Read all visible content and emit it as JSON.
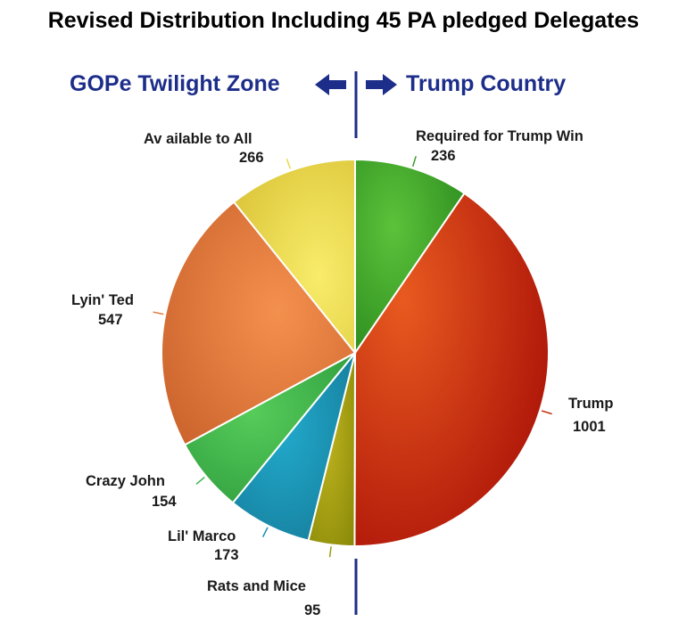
{
  "title": "Revised Distribution Including 45 PA pledged Delegates",
  "zones": {
    "left": "GOPe Twilight Zone",
    "right": "Trump Country",
    "color": "#1c2d8a"
  },
  "chart_data": {
    "type": "pie",
    "title": "Revised Distribution Including 45 PA pledged Delegates",
    "slices": [
      {
        "label": "Required for Trump Win",
        "value": 236,
        "color": "#3a9a2a"
      },
      {
        "label": "Trump",
        "value": 1001,
        "color": "#c8300e"
      },
      {
        "label": "Rats and Mice",
        "value": 95,
        "color": "#9a9a10"
      },
      {
        "label": "Lil' Marco",
        "value": 173,
        "color": "#1e8fb0"
      },
      {
        "label": "Crazy John",
        "value": 154,
        "color": "#3db34a"
      },
      {
        "label": "Lyin' Ted",
        "value": 547,
        "color": "#e07a3a"
      },
      {
        "label": "Available to All",
        "value": 266,
        "color": "#ecd84a"
      }
    ],
    "label_texts": {
      "available": "Av ailable to All"
    }
  }
}
